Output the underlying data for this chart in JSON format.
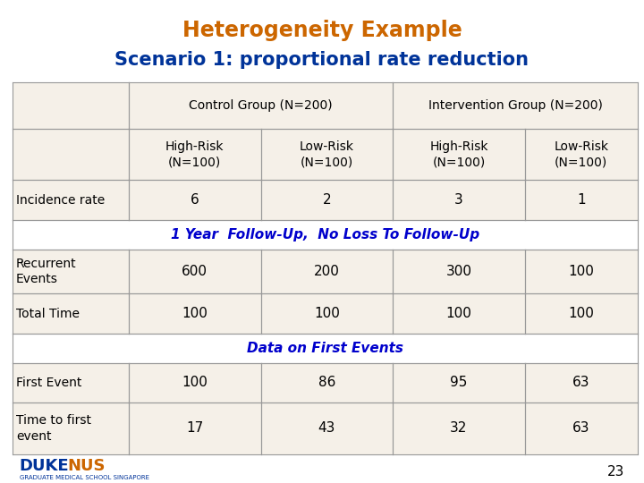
{
  "title1": "Heterogeneity Example",
  "title2": "Scenario 1: proportional rate reduction",
  "title1_color": "#CC6600",
  "title2_color": "#003399",
  "bg_color": "#FFFFFF",
  "table_bg": "#F5F0E8",
  "header_span1": "Control Group (N=200)",
  "header_span2": "Intervention Group (N=200)",
  "col_headers": [
    "High-Risk\n(N=100)",
    "Low-Risk\n(N=100)",
    "High-Risk\n(N=100)",
    "Low-Risk\n(N=100)"
  ],
  "row_label_col": [
    "Incidence rate",
    "",
    "1 Year Follow-Up, No Loss To Follow-Up",
    "Recurrent\nEvents",
    "Total Time",
    "",
    "Data on First Events",
    "First Event",
    "Time to first\nevent"
  ],
  "rows": [
    {
      "label": "Incidence rate",
      "values": [
        "6",
        "2",
        "3",
        "1"
      ],
      "is_data": true,
      "bg": "#F5F0E8"
    },
    {
      "label": "followup_header",
      "values": [],
      "is_section": true,
      "text": "1 Year Follow-Up, No Loss To Follow-Up",
      "bg": "#FFFFFF"
    },
    {
      "label": "Recurrent\nEvents",
      "values": [
        "600",
        "200",
        "300",
        "100"
      ],
      "is_data": true,
      "bg": "#F5F0E8"
    },
    {
      "label": "Total Time",
      "values": [
        "100",
        "100",
        "100",
        "100"
      ],
      "is_data": true,
      "bg": "#F5F0E8"
    },
    {
      "label": "first_events_header",
      "values": [],
      "is_section": true,
      "text": "Data on First Events",
      "bg": "#FFFFFF"
    },
    {
      "label": "First Event",
      "values": [
        "100",
        "86",
        "95",
        "63"
      ],
      "is_data": true,
      "bg": "#F5F0E8"
    },
    {
      "label": "Time to first\nevent",
      "values": [
        "17",
        "43",
        "32",
        "63"
      ],
      "is_data": true,
      "bg": "#F5F0E8"
    }
  ],
  "section_color": "#0000CC",
  "border_color": "#999999",
  "text_color": "#000000",
  "page_num": "23"
}
